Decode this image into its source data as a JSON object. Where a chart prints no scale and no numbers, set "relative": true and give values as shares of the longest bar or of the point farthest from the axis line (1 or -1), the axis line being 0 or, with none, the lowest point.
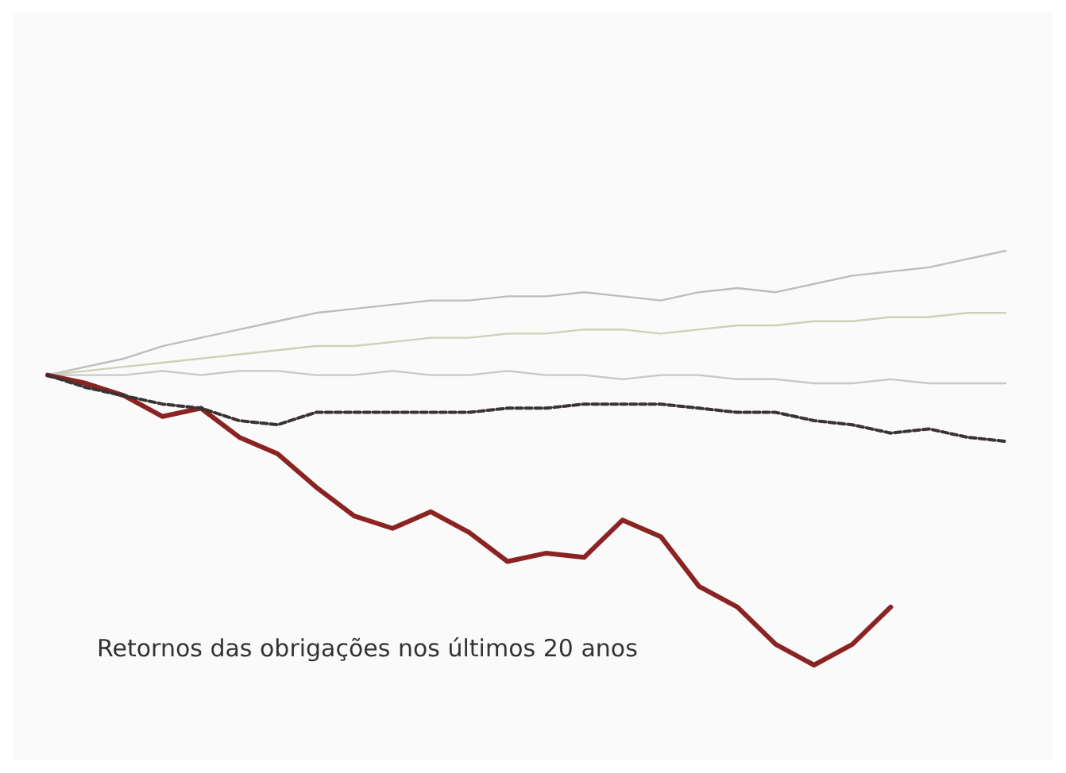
{
  "chart_data": {
    "type": "line",
    "title": "Retornos das obrigações nos últimos 20 anos",
    "relative": true,
    "grid": false,
    "marker": "none",
    "categories": [
      null,
      null,
      null,
      null,
      null,
      null,
      null,
      null,
      null,
      null,
      null,
      null,
      null,
      null,
      null,
      null,
      null,
      null,
      null,
      null,
      null,
      null,
      null,
      null,
      null,
      null
    ],
    "series": [
      {
        "color": "#bdbdbd",
        "values": [
          0.7,
          0.72,
          0.74,
          0.77,
          0.79,
          0.81,
          0.83,
          0.85,
          0.86,
          0.87,
          0.88,
          0.88,
          0.89,
          0.89,
          0.9,
          0.89,
          0.88,
          0.9,
          0.91,
          0.9,
          0.92,
          0.94,
          0.95,
          0.96,
          0.98,
          1.0
        ]
      },
      {
        "color": "#cfd0b8",
        "values": [
          0.7,
          0.71,
          0.72,
          0.73,
          0.74,
          0.75,
          0.76,
          0.77,
          0.77,
          0.78,
          0.79,
          0.79,
          0.8,
          0.8,
          0.81,
          0.81,
          0.8,
          0.81,
          0.82,
          0.82,
          0.83,
          0.83,
          0.84,
          0.84,
          0.85,
          0.85
        ]
      },
      {
        "color": "#c8c8c8",
        "values": [
          0.7,
          0.7,
          0.7,
          0.71,
          0.7,
          0.71,
          0.71,
          0.7,
          0.7,
          0.71,
          0.7,
          0.7,
          0.71,
          0.7,
          0.7,
          0.69,
          0.7,
          0.7,
          0.69,
          0.69,
          0.68,
          0.68,
          0.69,
          0.68,
          0.68,
          0.68
        ]
      },
      {
        "color": "#3a3333",
        "line_style": "dashed",
        "values": [
          0.7,
          0.67,
          0.65,
          0.63,
          0.62,
          0.59,
          0.58,
          0.61,
          0.61,
          0.61,
          0.61,
          0.61,
          0.62,
          0.62,
          0.63,
          0.63,
          0.63,
          0.62,
          0.61,
          0.61,
          0.59,
          0.58,
          0.56,
          0.57,
          0.55,
          0.54
        ]
      },
      {
        "color": "#8b2323",
        "values": [
          0.7,
          0.68,
          0.65,
          0.6,
          0.62,
          0.55,
          0.51,
          0.43,
          0.36,
          0.33,
          0.37,
          0.32,
          0.25,
          0.27,
          0.26,
          0.35,
          0.31,
          0.19,
          0.14,
          0.05,
          0,
          0.05,
          0.14,
          null,
          null,
          null
        ]
      }
    ]
  }
}
